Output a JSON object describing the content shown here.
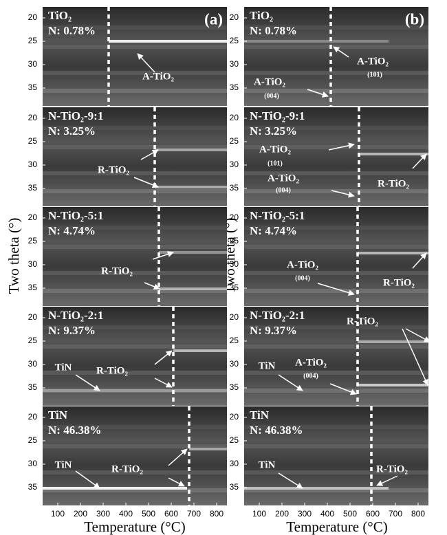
{
  "figure": {
    "y_axis_label": "Two theta (°)",
    "x_axis_label": "Temperature (°C)",
    "y_ticks": [
      "20",
      "25",
      "30",
      "35"
    ],
    "x_ticks": [
      "100",
      "200",
      "300",
      "400",
      "500",
      "600",
      "700",
      "800"
    ],
    "columns": [
      {
        "tag": "(a)",
        "panels": [
          {
            "name": "TiO₂",
            "n": "N: 0.78%",
            "annotations": [
              "A-TiO₂"
            ]
          },
          {
            "name": "N-TiO₂-9:1",
            "n": "N: 3.25%",
            "annotations": [
              "R-TiO₂"
            ]
          },
          {
            "name": "N-TiO₂-5:1",
            "n": "N: 4.74%",
            "annotations": [
              "R-TiO₂"
            ]
          },
          {
            "name": "N-TiO₂-2:1",
            "n": "N: 9.37%",
            "annotations": [
              "TiN",
              "R-TiO₂"
            ]
          },
          {
            "name": "TiN",
            "n": "N: 46.38%",
            "annotations": [
              "TiN",
              "R-TiO₂"
            ]
          }
        ]
      },
      {
        "tag": "(b)",
        "panels": [
          {
            "name": "TiO₂",
            "n": "N: 0.78%",
            "annotations": [
              "A-TiO₂",
              "(101)",
              "A-TiO₂",
              "(004)"
            ]
          },
          {
            "name": "N-TiO₂-9:1",
            "n": "N: 3.25%",
            "annotations": [
              "A-TiO₂",
              "(101)",
              "A-TiO₂",
              "(004)",
              "R-TiO₂"
            ]
          },
          {
            "name": "N-TiO₂-5:1",
            "n": "N: 4.74%",
            "annotations": [
              "A-TiO₂",
              "(004)",
              "R-TiO₂"
            ]
          },
          {
            "name": "N-TiO₂-2:1",
            "n": "N: 9.37%",
            "annotations": [
              "R-TiO₂",
              "TiN",
              "A-TiO₂",
              "(004)"
            ]
          },
          {
            "name": "TiN",
            "n": "N: 46.38%",
            "annotations": [
              "TiN",
              "R-TiO₂"
            ]
          }
        ]
      }
    ]
  }
}
